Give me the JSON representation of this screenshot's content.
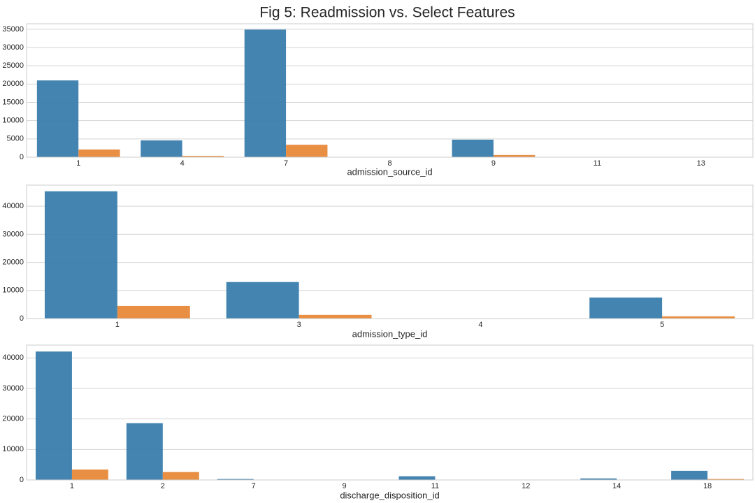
{
  "figure": {
    "title": "Fig 5: Readmission vs. Select Features"
  },
  "colors": {
    "series_0": "#3a7dad",
    "series_1": "#e8893a"
  },
  "chart_data": [
    {
      "type": "bar",
      "xlabel": "admission_source_id",
      "ylabel": "",
      "categories": [
        "1",
        "4",
        "7",
        "8",
        "9",
        "11",
        "13"
      ],
      "yticks": [
        0,
        5000,
        10000,
        15000,
        20000,
        25000,
        30000,
        35000
      ],
      "ylim": [
        0,
        36500
      ],
      "grid": true,
      "series": [
        {
          "values": [
            21000,
            4600,
            34900,
            0,
            4800,
            0,
            0
          ]
        },
        {
          "values": [
            2100,
            350,
            3400,
            0,
            600,
            0,
            0
          ]
        }
      ]
    },
    {
      "type": "bar",
      "xlabel": "admission_type_id",
      "ylabel": "",
      "categories": [
        "1",
        "3",
        "4",
        "5"
      ],
      "yticks": [
        0,
        10000,
        20000,
        30000,
        40000
      ],
      "ylim": [
        0,
        47500
      ],
      "grid": true,
      "series": [
        {
          "values": [
            45300,
            13000,
            0,
            7500
          ]
        },
        {
          "values": [
            4500,
            1300,
            0,
            800
          ]
        }
      ]
    },
    {
      "type": "bar",
      "xlabel": "discharge_disposition_id",
      "ylabel": "",
      "categories": [
        "1",
        "2",
        "7",
        "9",
        "11",
        "12",
        "14",
        "18"
      ],
      "yticks": [
        0,
        10000,
        20000,
        30000,
        40000
      ],
      "ylim": [
        0,
        44200
      ],
      "grid": true,
      "series": [
        {
          "values": [
            42100,
            18600,
            300,
            0,
            1200,
            0,
            500,
            3000
          ]
        },
        {
          "values": [
            3400,
            2600,
            50,
            0,
            80,
            0,
            30,
            300
          ]
        }
      ]
    }
  ]
}
